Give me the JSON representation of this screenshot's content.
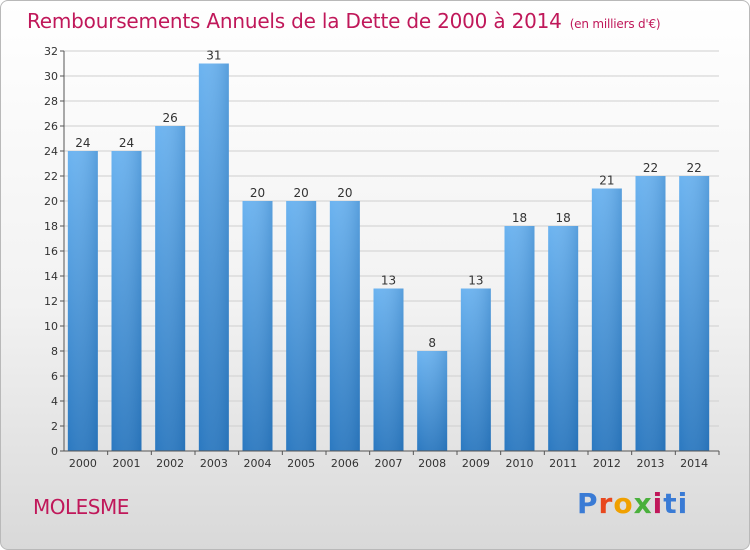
{
  "chart_data": {
    "type": "bar",
    "title": "Remboursements Annuels de la Dette de 2000 à 2014",
    "subtitle": "(en milliers d'€)",
    "categories": [
      "2000",
      "2001",
      "2002",
      "2003",
      "2004",
      "2005",
      "2006",
      "2007",
      "2008",
      "2009",
      "2010",
      "2011",
      "2012",
      "2013",
      "2014"
    ],
    "values": [
      24,
      24,
      26,
      31,
      20,
      20,
      20,
      13,
      8,
      13,
      18,
      18,
      21,
      22,
      22
    ],
    "xlabel": "",
    "ylabel": "",
    "ylim": [
      0,
      32
    ],
    "yticks": [
      0,
      2,
      4,
      6,
      8,
      10,
      12,
      14,
      16,
      18,
      20,
      22,
      24,
      26,
      28,
      30,
      32
    ],
    "grid": true,
    "legend": "none"
  },
  "footer": {
    "town": "MOLESME",
    "brand": "Proxiti"
  },
  "colors": {
    "title": "#c0185a",
    "bar_top": "#6bb3f0",
    "bar_bottom": "#2a78c0",
    "grid": "#cfcfcf",
    "axis": "#555555"
  }
}
